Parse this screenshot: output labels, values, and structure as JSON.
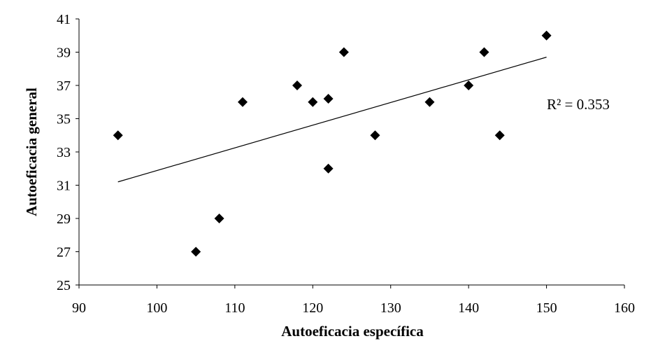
{
  "chart_data": {
    "type": "scatter",
    "title": "",
    "xlabel": "Autoeficacia específica",
    "ylabel": "Autoeficacia general",
    "xlim": [
      90,
      160
    ],
    "ylim": [
      25,
      41
    ],
    "xticks": [
      90,
      100,
      110,
      120,
      130,
      140,
      150,
      160
    ],
    "yticks": [
      25,
      27,
      29,
      31,
      33,
      35,
      37,
      39,
      41
    ],
    "grid": false,
    "legend": "none",
    "marker": "diamond",
    "marker_color": "#000000",
    "series": [
      {
        "points": [
          {
            "x": 95,
            "y": 34
          },
          {
            "x": 105,
            "y": 27
          },
          {
            "x": 108,
            "y": 29
          },
          {
            "x": 111,
            "y": 36
          },
          {
            "x": 118,
            "y": 37
          },
          {
            "x": 120,
            "y": 36
          },
          {
            "x": 122,
            "y": 36.2
          },
          {
            "x": 122,
            "y": 32
          },
          {
            "x": 124,
            "y": 39
          },
          {
            "x": 128,
            "y": 34
          },
          {
            "x": 135,
            "y": 36
          },
          {
            "x": 140,
            "y": 37
          },
          {
            "x": 142,
            "y": 39
          },
          {
            "x": 144,
            "y": 34
          },
          {
            "x": 150,
            "y": 40
          }
        ]
      }
    ],
    "trendline": {
      "type": "linear",
      "from": {
        "x": 95,
        "y": 31.2
      },
      "to": {
        "x": 150,
        "y": 38.7
      }
    },
    "annotation": {
      "text": "R² = 0.353"
    }
  }
}
